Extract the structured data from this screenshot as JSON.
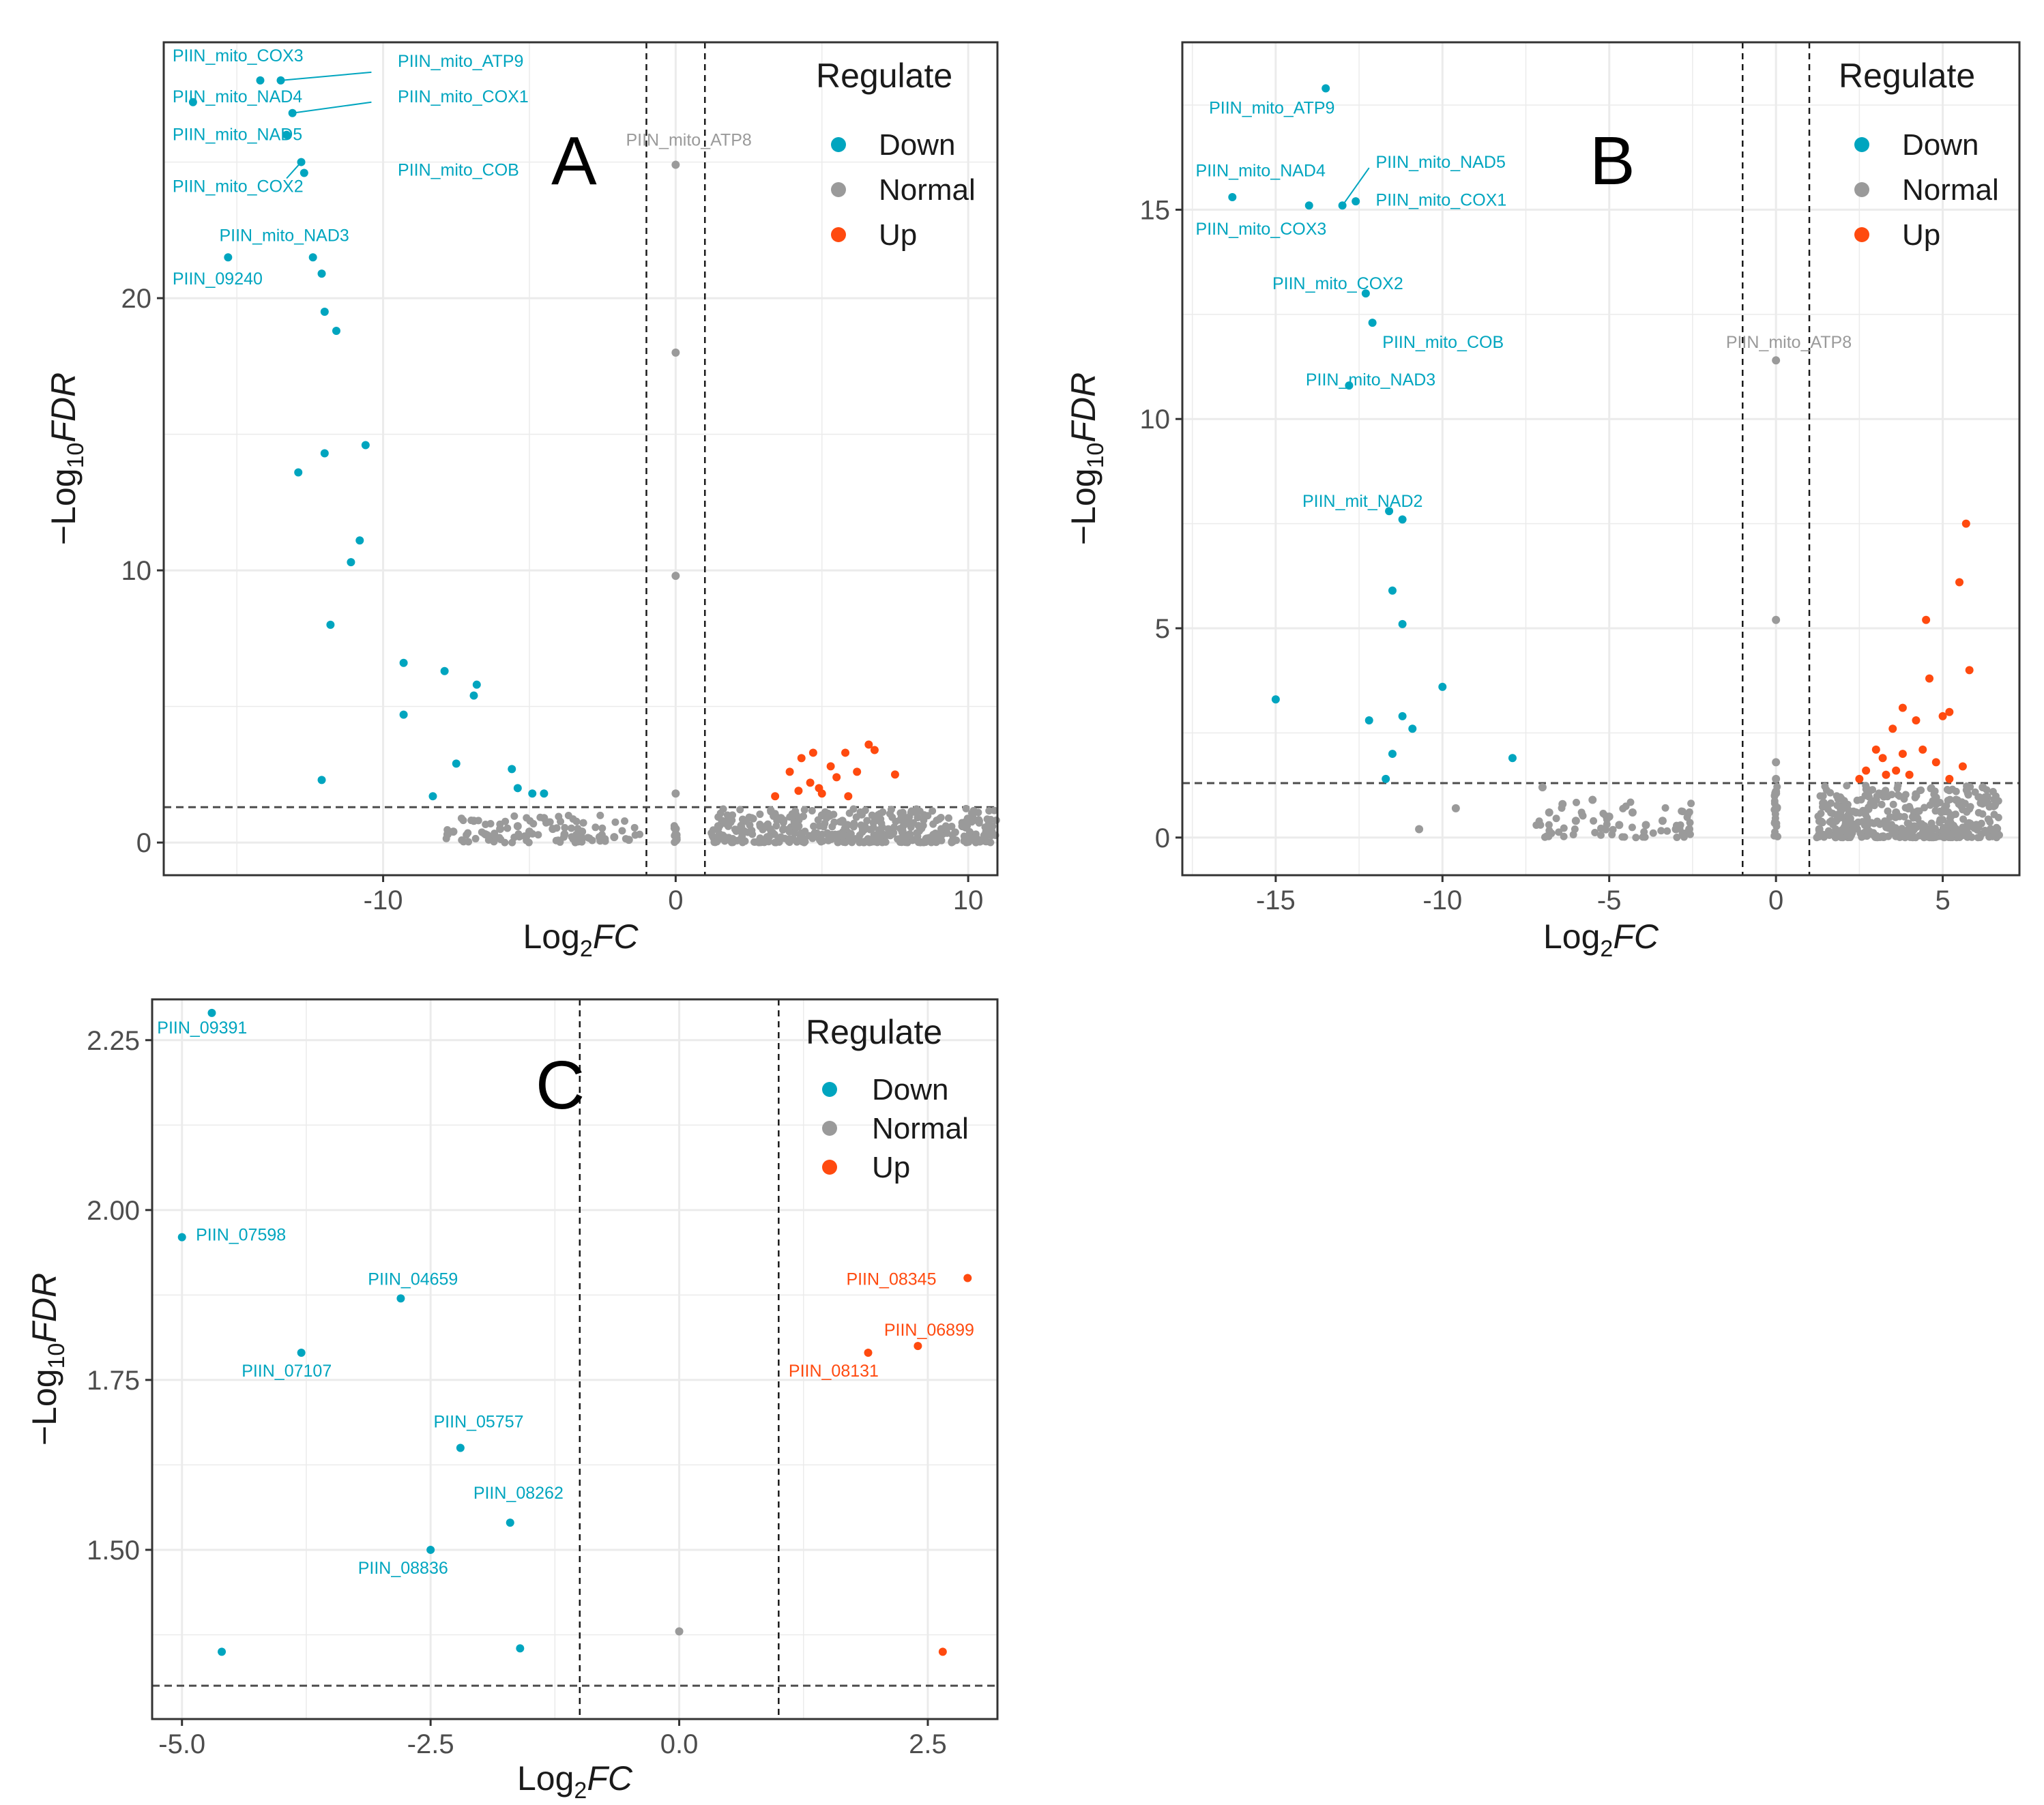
{
  "colors": {
    "down": "#00A5BF",
    "normal": "#9A9A9A",
    "up": "#FF4A0F",
    "grid": "#EBEBEB",
    "frame": "#333333"
  },
  "chart_data": [
    {
      "type": "scatter",
      "panel_letter": "A",
      "title": "",
      "xlabel_main": "Log",
      "xlabel_sub": "2",
      "xlabel_tail": "FC",
      "ylabel_prefix": "−Log",
      "ylabel_sub": "10",
      "ylabel_tail": "FDR",
      "xlim": [
        -17.5,
        11
      ],
      "ylim": [
        -1.2,
        29.4
      ],
      "xticks": [
        -10,
        0,
        10
      ],
      "xtick_labels": [
        "-10",
        "0",
        "10"
      ],
      "yticks": [
        0,
        10,
        20
      ],
      "ytick_labels": [
        "0",
        "10",
        "20"
      ],
      "vlines": [
        -1,
        1
      ],
      "hline": 1.3,
      "legend": {
        "title": "Regulate",
        "entries": [
          "Down",
          "Normal",
          "Up"
        ],
        "position": "top-right"
      },
      "series": [
        {
          "name": "Down",
          "points": [
            [
              -14.2,
              28.0
            ],
            [
              -13.5,
              28.0
            ],
            [
              -16.5,
              27.2
            ],
            [
              -13.1,
              26.8
            ],
            [
              -13.3,
              26.0
            ],
            [
              -12.8,
              25.0
            ],
            [
              -12.7,
              24.6
            ],
            [
              -15.3,
              21.5
            ],
            [
              -12.4,
              21.5
            ],
            [
              -12.1,
              20.9
            ],
            [
              -12.0,
              19.5
            ],
            [
              -11.6,
              18.8
            ],
            [
              -12.0,
              14.3
            ],
            [
              -12.9,
              13.6
            ],
            [
              -10.6,
              14.6
            ],
            [
              -10.8,
              11.1
            ],
            [
              -11.1,
              10.3
            ],
            [
              -11.8,
              8.0
            ],
            [
              -9.3,
              6.6
            ],
            [
              -7.9,
              6.3
            ],
            [
              -6.8,
              5.8
            ],
            [
              -6.9,
              5.4
            ],
            [
              -9.3,
              4.7
            ],
            [
              -7.5,
              2.9
            ],
            [
              -5.6,
              2.7
            ],
            [
              -12.1,
              2.3
            ],
            [
              -5.4,
              2.0
            ],
            [
              -8.3,
              1.7
            ],
            [
              -4.9,
              1.8
            ],
            [
              -4.5,
              1.8
            ]
          ]
        },
        {
          "name": "Normal",
          "points": [
            [
              0,
              24.9
            ],
            [
              0,
              18.0
            ],
            [
              0,
              9.8
            ],
            [
              0,
              1.8
            ],
            [
              -7.8,
              0.3
            ],
            [
              -7.6,
              0.4
            ],
            [
              -6.9,
              0.8
            ],
            [
              -6.5,
              0.3
            ],
            [
              -6.0,
              0.5
            ],
            [
              -5.4,
              0.6
            ],
            [
              -5.0,
              0.4
            ],
            [
              -4.5,
              0.9
            ],
            [
              -4.2,
              0.5
            ],
            [
              -3.8,
              0.3
            ],
            [
              -3.2,
              0.4
            ],
            [
              -2.6,
              0.2
            ],
            [
              -2.1,
              0.2
            ],
            [
              -1.6,
              0.1
            ],
            [
              0,
              0.3
            ],
            [
              0,
              0.5
            ],
            [
              1.5,
              0.3
            ],
            [
              2.2,
              0.5
            ],
            [
              2.9,
              0.6
            ],
            [
              3.6,
              0.9
            ],
            [
              4.2,
              0.6
            ],
            [
              5.0,
              1.0
            ],
            [
              5.7,
              0.8
            ],
            [
              6.4,
              0.5
            ],
            [
              7.0,
              0.4
            ],
            [
              8.0,
              0.3
            ],
            [
              8.8,
              0.2
            ],
            [
              9.8,
              0.6
            ],
            [
              10.8,
              0.4
            ]
          ]
        },
        {
          "name": "Up",
          "points": [
            [
              3.4,
              1.7
            ],
            [
              3.9,
              2.6
            ],
            [
              4.2,
              1.9
            ],
            [
              4.3,
              3.1
            ],
            [
              4.6,
              2.2
            ],
            [
              4.7,
              3.3
            ],
            [
              5.0,
              1.8
            ],
            [
              5.3,
              2.8
            ],
            [
              5.5,
              2.4
            ],
            [
              5.8,
              3.3
            ],
            [
              6.2,
              2.6
            ],
            [
              6.6,
              3.6
            ],
            [
              6.8,
              3.4
            ],
            [
              7.5,
              2.5
            ],
            [
              4.9,
              2.0
            ],
            [
              5.9,
              1.7
            ]
          ]
        }
      ],
      "normal_clusters": [
        {
          "x": [
            -7.9,
            -1.2
          ],
          "y": [
            0,
            1.0
          ],
          "n": 90
        },
        {
          "x": [
            1.2,
            11
          ],
          "y": [
            0,
            1.25
          ],
          "n": 420
        },
        {
          "x": [
            -0.05,
            0.05
          ],
          "y": [
            0,
            0.7
          ],
          "n": 14
        }
      ],
      "labels": [
        {
          "text": "PIIN_mito_COX3",
          "x": -17.2,
          "y": 28.7,
          "series": "Down"
        },
        {
          "text": "PIIN_mito_ATP9",
          "x": -9.5,
          "y": 28.5,
          "series": "Down"
        },
        {
          "text": "PIIN_mito_NAD4",
          "x": -17.2,
          "y": 27.2,
          "series": "Down"
        },
        {
          "text": "PIIN_mito_COX1",
          "x": -9.5,
          "y": 27.2,
          "series": "Down"
        },
        {
          "text": "PIIN_mito_NAD5",
          "x": -17.2,
          "y": 25.8,
          "series": "Down"
        },
        {
          "text": "PIIN_mito_COB",
          "x": -9.5,
          "y": 24.5,
          "series": "Down"
        },
        {
          "text": "PIIN_mito_COX2",
          "x": -17.2,
          "y": 23.9,
          "series": "Down"
        },
        {
          "text": "PIIN_mito_NAD3",
          "x": -15.6,
          "y": 22.1,
          "series": "Down"
        },
        {
          "text": "PIIN_09240",
          "x": -17.2,
          "y": 20.5,
          "series": "Down"
        },
        {
          "text": "PIIN_mito_ATP8",
          "x": -1.7,
          "y": 25.6,
          "series": "Normal"
        }
      ],
      "leaders": [
        [
          -13.5,
          28.0,
          -10.4,
          28.3
        ],
        [
          -13.1,
          26.8,
          -10.4,
          27.2
        ],
        [
          -12.8,
          25.0,
          -13.3,
          24.4
        ]
      ]
    },
    {
      "type": "scatter",
      "panel_letter": "B",
      "title": "",
      "xlabel_main": "Log",
      "xlabel_sub": "2",
      "xlabel_tail": "FC",
      "ylabel_prefix": "−Log",
      "ylabel_sub": "10",
      "ylabel_tail": "FDR",
      "xlim": [
        -17.8,
        7.3
      ],
      "ylim": [
        -0.9,
        19.0
      ],
      "xticks": [
        -15,
        -10,
        -5,
        0,
        5
      ],
      "xtick_labels": [
        "-15",
        "-10",
        "-5",
        "0",
        "5"
      ],
      "yticks": [
        0,
        5,
        10,
        15
      ],
      "ytick_labels": [
        "0",
        "5",
        "10",
        "15"
      ],
      "vlines": [
        -1,
        1
      ],
      "hline": 1.3,
      "legend": {
        "title": "Regulate",
        "entries": [
          "Down",
          "Normal",
          "Up"
        ],
        "position": "top-right"
      },
      "series": [
        {
          "name": "Down",
          "points": [
            [
              -13.5,
              17.9
            ],
            [
              -16.3,
              15.3
            ],
            [
              -14.0,
              15.1
            ],
            [
              -13.0,
              15.1
            ],
            [
              -12.6,
              15.2
            ],
            [
              -12.3,
              13.0
            ],
            [
              -12.1,
              12.3
            ],
            [
              -12.8,
              10.8
            ],
            [
              -11.6,
              7.8
            ],
            [
              -11.2,
              7.6
            ],
            [
              -11.5,
              5.9
            ],
            [
              -11.2,
              5.1
            ],
            [
              -10.0,
              3.6
            ],
            [
              -15.0,
              3.3
            ],
            [
              -12.2,
              2.8
            ],
            [
              -11.2,
              2.9
            ],
            [
              -10.9,
              2.6
            ],
            [
              -11.5,
              2.0
            ],
            [
              -7.9,
              1.9
            ],
            [
              -11.7,
              1.4
            ]
          ]
        },
        {
          "name": "Normal",
          "points": [
            [
              0,
              11.4
            ],
            [
              0,
              5.2
            ],
            [
              0,
              1.8
            ],
            [
              0,
              1.4
            ],
            [
              0,
              1.1
            ],
            [
              -10.7,
              0.2
            ],
            [
              -9.6,
              0.7
            ],
            [
              -7.0,
              1.2
            ],
            [
              -6.8,
              0.6
            ],
            [
              -6.4,
              0.8
            ],
            [
              -6.0,
              0.4
            ],
            [
              -5.5,
              0.9
            ],
            [
              -5.0,
              0.5
            ],
            [
              -4.7,
              0.3
            ],
            [
              -4.3,
              0.6
            ],
            [
              -3.9,
              0.3
            ],
            [
              -3.4,
              0.4
            ],
            [
              -3.0,
              0.2
            ],
            [
              -2.6,
              0.2
            ],
            [
              1.3,
              0.2
            ],
            [
              1.8,
              0.4
            ],
            [
              2.4,
              0.6
            ],
            [
              3.0,
              0.9
            ],
            [
              3.6,
              0.6
            ],
            [
              4.2,
              1.0
            ],
            [
              4.8,
              0.8
            ],
            [
              5.4,
              0.9
            ],
            [
              6.2,
              1.2
            ]
          ]
        },
        {
          "name": "Up",
          "points": [
            [
              5.7,
              7.5
            ],
            [
              5.5,
              6.1
            ],
            [
              4.5,
              5.2
            ],
            [
              5.8,
              4.0
            ],
            [
              4.6,
              3.8
            ],
            [
              3.8,
              3.1
            ],
            [
              5.2,
              3.0
            ],
            [
              3.5,
              2.6
            ],
            [
              4.2,
              2.8
            ],
            [
              5.0,
              2.9
            ],
            [
              3.0,
              2.1
            ],
            [
              3.8,
              2.0
            ],
            [
              4.4,
              2.1
            ],
            [
              3.2,
              1.9
            ],
            [
              4.8,
              1.8
            ],
            [
              5.6,
              1.7
            ],
            [
              2.7,
              1.6
            ],
            [
              3.3,
              1.5
            ],
            [
              4.0,
              1.5
            ],
            [
              5.2,
              1.4
            ],
            [
              2.5,
              1.4
            ],
            [
              3.6,
              1.6
            ]
          ]
        }
      ],
      "normal_clusters": [
        {
          "x": [
            -7.2,
            -2.4
          ],
          "y": [
            0,
            0.9
          ],
          "n": 60
        },
        {
          "x": [
            1.2,
            6.7
          ],
          "y": [
            0,
            1.25
          ],
          "n": 380
        },
        {
          "x": [
            -0.05,
            0.05
          ],
          "y": [
            0,
            1.3
          ],
          "n": 20
        }
      ],
      "labels": [
        {
          "text": "PIIN_mito_ATP9",
          "x": -17.0,
          "y": 17.3,
          "series": "Down"
        },
        {
          "text": "PIIN_mito_NAD4",
          "x": -17.4,
          "y": 15.8,
          "series": "Down"
        },
        {
          "text": "PIIN_mito_NAD5",
          "x": -12.0,
          "y": 16.0,
          "series": "Down"
        },
        {
          "text": "PIIN_mito_COX1",
          "x": -12.0,
          "y": 15.1,
          "series": "Down"
        },
        {
          "text": "PIIN_mito_COX3",
          "x": -17.4,
          "y": 14.4,
          "series": "Down"
        },
        {
          "text": "PIIN_mito_COX2",
          "x": -15.1,
          "y": 13.1,
          "series": "Down"
        },
        {
          "text": "PIIN_mito_COB",
          "x": -11.8,
          "y": 11.7,
          "series": "Down"
        },
        {
          "text": "PIIN_mito_NAD3",
          "x": -14.1,
          "y": 10.8,
          "series": "Down"
        },
        {
          "text": "PIIN_mit_NAD2",
          "x": -14.2,
          "y": 7.9,
          "series": "Down"
        },
        {
          "text": "PIIN_mito_ATP8",
          "x": -1.5,
          "y": 11.7,
          "series": "Normal"
        }
      ],
      "leaders": [
        [
          -13.0,
          15.1,
          -12.2,
          16.0
        ]
      ]
    },
    {
      "type": "scatter",
      "panel_letter": "C",
      "title": "",
      "xlabel_main": "Log",
      "xlabel_sub": "2",
      "xlabel_tail": "FC",
      "ylabel_prefix": "−Log",
      "ylabel_sub": "10",
      "ylabel_tail": "FDR",
      "xlim": [
        -5.3,
        3.2
      ],
      "ylim": [
        1.251,
        2.31
      ],
      "xticks": [
        -5.0,
        -2.5,
        0.0,
        2.5
      ],
      "xtick_labels": [
        "-5.0",
        "-2.5",
        "0.0",
        "2.5"
      ],
      "yticks": [
        1.5,
        1.75,
        2.0,
        2.25
      ],
      "ytick_labels": [
        "1.50",
        "1.75",
        "2.00",
        "2.25"
      ],
      "vlines": [
        -1,
        1
      ],
      "hline": 1.3,
      "legend": {
        "title": "Regulate",
        "entries": [
          "Down",
          "Normal",
          "Up"
        ],
        "position": "top-right"
      },
      "series": [
        {
          "name": "Down",
          "points": [
            [
              -4.7,
              2.29
            ],
            [
              -5.0,
              1.96
            ],
            [
              -2.8,
              1.87
            ],
            [
              -3.8,
              1.79
            ],
            [
              -2.2,
              1.65
            ],
            [
              -1.7,
              1.54
            ],
            [
              -2.5,
              1.5
            ],
            [
              -4.6,
              1.35
            ],
            [
              -1.6,
              1.355
            ]
          ]
        },
        {
          "name": "Normal",
          "points": [
            [
              0.0,
              1.38
            ]
          ]
        },
        {
          "name": "Up",
          "points": [
            [
              2.9,
              1.9
            ],
            [
              2.4,
              1.8
            ],
            [
              1.9,
              1.79
            ],
            [
              2.65,
              1.35
            ]
          ]
        }
      ],
      "labels": [
        {
          "text": "PIIN_09391",
          "x": -5.25,
          "y": 2.26,
          "series": "Down"
        },
        {
          "text": "PIIN_07598",
          "x": -4.86,
          "y": 1.955,
          "series": "Down"
        },
        {
          "text": "PIIN_04659",
          "x": -3.13,
          "y": 1.89,
          "series": "Down"
        },
        {
          "text": "PIIN_07107",
          "x": -4.4,
          "y": 1.755,
          "series": "Down"
        },
        {
          "text": "PIIN_05757",
          "x": -2.47,
          "y": 1.68,
          "series": "Down"
        },
        {
          "text": "PIIN_08262",
          "x": -2.07,
          "y": 1.575,
          "series": "Down"
        },
        {
          "text": "PIIN_08836",
          "x": -3.23,
          "y": 1.465,
          "series": "Down"
        },
        {
          "text": "PIIN_08345",
          "x": 1.68,
          "y": 1.89,
          "series": "Up"
        },
        {
          "text": "PIIN_06899",
          "x": 2.06,
          "y": 1.815,
          "series": "Up"
        },
        {
          "text": "PIIN_08131",
          "x": 1.1,
          "y": 1.755,
          "series": "Up"
        }
      ],
      "leaders": []
    }
  ]
}
